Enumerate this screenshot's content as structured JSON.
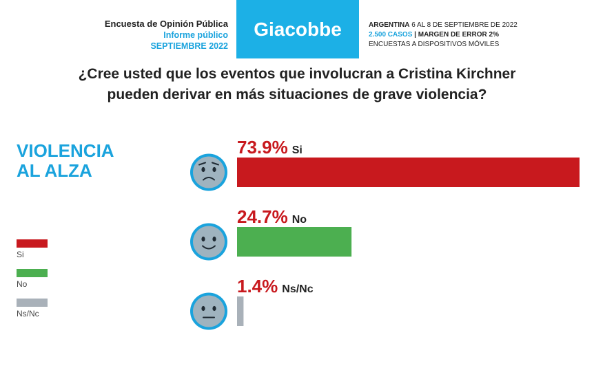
{
  "header": {
    "title": "Encuesta de Opinión Pública",
    "subtitle": "Informe público",
    "date": "SEPTIEMBRE 2022",
    "brand": "Giacobbe",
    "country": "ARGENTINA",
    "field_dates": "6 AL 8 DE SEPTIEMBRE DE 2022",
    "cases": "2.500 CASOS",
    "margin": "| MARGEN DE ERROR 2%",
    "method": "ENCUESTAS A DISPOSITIVOS MÓVILES"
  },
  "question_line1": "¿Cree usted que los eventos que involucran a Cristina Kirchner",
  "question_line2": "pueden derivar en más situaciones de grave violencia?",
  "tagline_line1": "VIOLENCIA",
  "tagline_line2": "AL ALZA",
  "chart_data": {
    "type": "bar",
    "orientation": "horizontal",
    "categories": [
      "Si",
      "No",
      "Ns/Nc"
    ],
    "values": [
      73.9,
      24.7,
      1.4
    ],
    "value_labels": [
      "73.9%",
      "24.7%",
      "1.4%"
    ],
    "colors": [
      "#c8191e",
      "#4caf50",
      "#a9b1b9"
    ],
    "icons": [
      "worried-face-icon",
      "smiling-face-icon",
      "neutral-face-icon"
    ],
    "xlim": [
      0,
      73.9
    ],
    "legend": {
      "position": "left",
      "labels": [
        "Si",
        "No",
        "Ns/Nc"
      ]
    },
    "grid": false
  }
}
